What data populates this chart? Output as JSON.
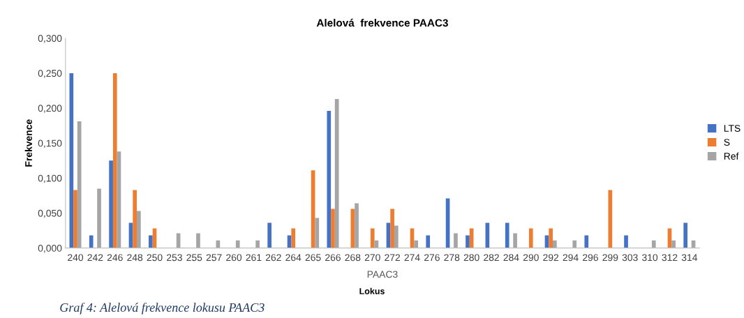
{
  "chart_data": {
    "type": "bar",
    "title": "Alelová  frekvence PAAC3",
    "xlabel": "PAAC3",
    "ylabel": "Frekvence",
    "annotations": [
      "Lokus",
      "Graf 4: Alelová frekvence lokusu PAAC3"
    ],
    "categories": [
      "240",
      "242",
      "246",
      "248",
      "250",
      "253",
      "255",
      "257",
      "260",
      "261",
      "262",
      "264",
      "265",
      "266",
      "268",
      "270",
      "272",
      "274",
      "276",
      "278",
      "280",
      "282",
      "284",
      "290",
      "292",
      "294",
      "296",
      "299",
      "303",
      "310",
      "312",
      "314"
    ],
    "series": [
      {
        "name": "LTS",
        "color": "#4472c4",
        "values": [
          0.25,
          0.018,
          0.125,
          0.036,
          0.018,
          0,
          0,
          0,
          0,
          0,
          0.036,
          0.018,
          0,
          0.196,
          0,
          0,
          0.036,
          0,
          0.018,
          0.071,
          0.018,
          0.036,
          0.036,
          0,
          0.018,
          0,
          0.018,
          0,
          0.018,
          0,
          0,
          0.036
        ]
      },
      {
        "name": "S",
        "color": "#ed7d31",
        "values": [
          0.083,
          0,
          0.25,
          0.083,
          0.028,
          0,
          0,
          0,
          0,
          0,
          0,
          0.028,
          0.111,
          0.056,
          0.056,
          0.028,
          0.056,
          0.028,
          0,
          0,
          0.028,
          0,
          0,
          0.028,
          0.028,
          0,
          0,
          0.083,
          0,
          0,
          0.028,
          0
        ]
      },
      {
        "name": "Ref",
        "color": "#a5a5a5",
        "values": [
          0.181,
          0.085,
          0.138,
          0.053,
          0,
          0.021,
          0.021,
          0.011,
          0.011,
          0.011,
          0,
          0,
          0.043,
          0.213,
          0.064,
          0.011,
          0.032,
          0.011,
          0,
          0.021,
          0,
          0,
          0.021,
          0,
          0.011,
          0.011,
          0,
          0,
          0,
          0.011,
          0.011,
          0.011
        ]
      }
    ],
    "ylim": [
      0,
      0.3
    ],
    "yticks": [
      {
        "value": 0,
        "label": "0,000"
      },
      {
        "value": 0.05,
        "label": "0,050"
      },
      {
        "value": 0.1,
        "label": "0,100"
      },
      {
        "value": 0.15,
        "label": "0,150"
      },
      {
        "value": 0.2,
        "label": "0,200"
      },
      {
        "value": 0.25,
        "label": "0,250"
      },
      {
        "value": 0.3,
        "label": "0,300"
      }
    ],
    "grid": false,
    "legend": "right"
  }
}
